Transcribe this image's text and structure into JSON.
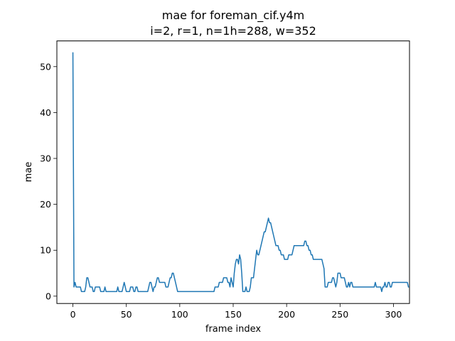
{
  "chart_data": {
    "type": "line",
    "title_line1": "mae for foreman_cif.y4m",
    "title_line2": "i=2, r=1, n=1h=288, w=352",
    "xlabel": "frame index",
    "ylabel": "mae",
    "xlim": [
      -15,
      315
    ],
    "ylim": [
      -1.6,
      55.6
    ],
    "xticks": [
      0,
      50,
      100,
      150,
      200,
      250,
      300
    ],
    "yticks": [
      0,
      10,
      20,
      30,
      40,
      50
    ],
    "grid": false,
    "line_color": "#1f77b4",
    "series": [
      {
        "values": [
          53,
          2,
          3,
          2,
          2,
          2,
          2,
          2,
          1,
          1,
          1,
          1,
          2,
          4,
          4,
          3,
          2,
          2,
          2,
          1,
          1,
          2,
          2,
          2,
          2,
          2,
          1,
          1,
          1,
          1,
          2,
          1,
          1,
          1,
          1,
          1,
          1,
          1,
          1,
          1,
          1,
          1,
          2,
          1,
          1,
          1,
          1,
          2,
          3,
          2,
          1,
          1,
          1,
          1,
          2,
          2,
          2,
          1,
          1,
          2,
          2,
          1,
          1,
          1,
          1,
          1,
          1,
          1,
          1,
          1,
          1,
          2,
          3,
          3,
          2,
          1,
          2,
          2,
          3,
          4,
          4,
          3,
          3,
          3,
          3,
          3,
          3,
          2,
          2,
          2,
          3,
          4,
          4,
          5,
          5,
          4,
          3,
          2,
          1,
          1,
          1,
          1,
          1,
          1,
          1,
          1,
          1,
          1,
          1,
          1,
          1,
          1,
          1,
          1,
          1,
          1,
          1,
          1,
          1,
          1,
          1,
          1,
          1,
          1,
          1,
          1,
          1,
          1,
          1,
          1,
          1,
          1,
          1,
          2,
          2,
          2,
          2,
          3,
          3,
          3,
          3,
          4,
          4,
          4,
          4,
          3,
          3,
          2,
          4,
          3,
          2,
          5,
          7,
          8,
          8,
          7,
          9,
          8,
          5,
          1,
          1,
          1,
          2,
          1,
          1,
          1,
          2,
          4,
          4,
          4,
          6,
          8,
          10,
          9,
          9,
          10,
          11,
          12,
          13,
          14,
          14,
          15,
          16,
          17,
          16,
          16,
          15,
          14,
          13,
          12,
          11,
          11,
          11,
          10,
          10,
          9,
          9,
          9,
          8,
          8,
          8,
          8,
          9,
          9,
          9,
          9,
          10,
          11,
          11,
          11,
          11,
          11,
          11,
          11,
          11,
          11,
          11,
          12,
          12,
          11,
          11,
          10,
          10,
          9,
          9,
          8,
          8,
          8,
          8,
          8,
          8,
          8,
          8,
          8,
          7,
          6,
          2,
          2,
          2,
          3,
          3,
          3,
          3,
          4,
          4,
          3,
          2,
          3,
          5,
          5,
          5,
          4,
          4,
          4,
          4,
          3,
          2,
          2,
          3,
          2,
          3,
          3,
          2,
          2,
          2,
          2,
          2,
          2,
          2,
          2,
          2,
          2,
          2,
          2,
          2,
          2,
          2,
          2,
          2,
          2,
          2,
          2,
          2,
          3,
          2,
          2,
          2,
          2,
          2,
          1,
          2,
          2,
          3,
          2,
          2,
          3,
          3,
          2,
          2,
          3,
          3,
          3,
          3,
          3,
          3,
          3,
          3,
          3,
          3,
          3,
          3,
          3,
          3,
          3,
          2
        ]
      }
    ]
  }
}
